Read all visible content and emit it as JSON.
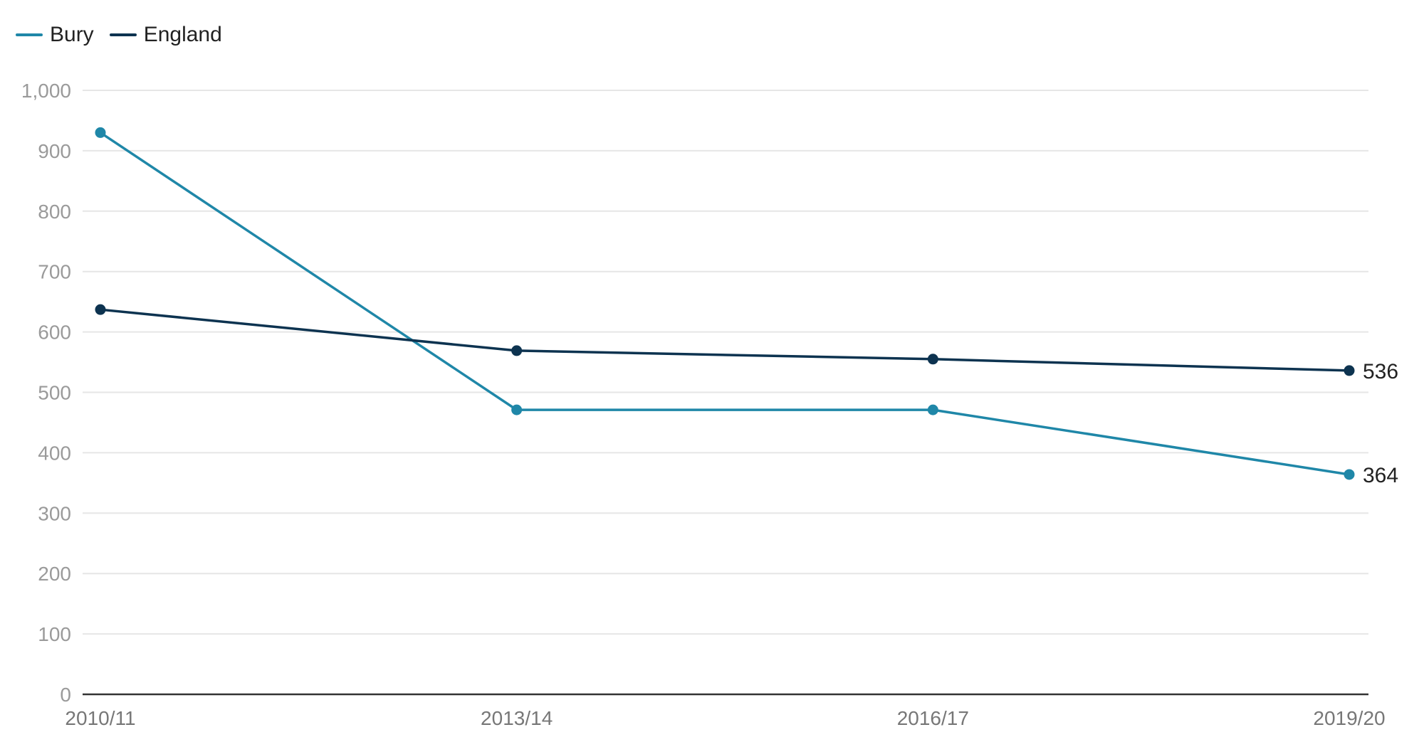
{
  "chart_data": {
    "type": "line",
    "categories": [
      "2010/11",
      "2013/14",
      "2016/17",
      "2019/20"
    ],
    "series": [
      {
        "name": "Bury",
        "color": "#1f87a8",
        "values": [
          930,
          471,
          471,
          364
        ]
      },
      {
        "name": "England",
        "color": "#0d3350",
        "values": [
          637,
          569,
          555,
          536
        ]
      }
    ],
    "ylim": [
      0,
      1000
    ],
    "yticks": [
      0,
      100,
      200,
      300,
      400,
      500,
      600,
      700,
      800,
      900,
      1000
    ],
    "ytick_labels": [
      "0",
      "100",
      "200",
      "300",
      "400",
      "500",
      "600",
      "700",
      "800",
      "900",
      "1,000"
    ],
    "end_labels": [
      "364",
      "536"
    ],
    "legend": {
      "placement": "top-left"
    },
    "grid": true
  }
}
